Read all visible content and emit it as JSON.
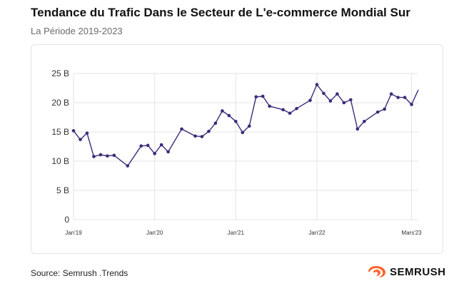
{
  "header": {
    "title": "Tendance du Trafic Dans le Secteur de L'e-commerce Mondial Sur",
    "subtitle": "La Période 2019-2023"
  },
  "footer": {
    "source": "Source: Semrush .Trends",
    "brand": "SEMRUSH"
  },
  "colors": {
    "line": "#3d2a7a",
    "grid": "#e3e3e3",
    "axis_text": "#333333",
    "brand_orange": "#ff642d"
  },
  "icons": {
    "brand_logo": "semrush-flame-icon"
  },
  "chart_data": {
    "type": "line",
    "title": "Tendance du Trafic Dans le Secteur de L'e-commerce Mondial Sur",
    "subtitle": "La Période 2019-2023",
    "xlabel": "",
    "ylabel": "",
    "ylim": [
      0,
      25
    ],
    "y_ticks": [
      0,
      5,
      10,
      15,
      20,
      25
    ],
    "y_tick_labels": [
      "0",
      "5 B",
      "10 B",
      "15 B",
      "20 B",
      "25 B"
    ],
    "x_ticks": [
      {
        "label": "Jan'19",
        "x": 0
      },
      {
        "label": "Jan'20",
        "x": 12
      },
      {
        "label": "Jan'21",
        "x": 24
      },
      {
        "label": "Jan'22",
        "x": 36
      },
      {
        "label": "Mars'23",
        "x": 50
      }
    ],
    "grid": "horizontal",
    "legend": "none",
    "series": [
      {
        "unit": "B",
        "x": [
          0,
          1,
          2,
          3,
          4,
          5,
          6,
          8,
          10,
          11,
          12,
          13,
          14,
          16,
          18,
          19,
          20,
          21,
          22,
          23,
          24,
          25,
          26,
          27,
          28,
          29,
          31,
          32,
          33,
          35,
          36,
          37,
          38,
          39,
          40,
          41,
          42,
          43,
          45,
          46,
          47,
          48,
          49,
          50,
          51
        ],
        "values": [
          15.2,
          13.7,
          14.8,
          10.8,
          11.1,
          10.9,
          11.0,
          9.2,
          12.6,
          12.7,
          11.3,
          12.8,
          11.6,
          15.5,
          14.3,
          14.2,
          15.1,
          16.5,
          18.6,
          17.8,
          16.8,
          14.9,
          16.0,
          21.0,
          21.1,
          19.4,
          18.8,
          18.2,
          19.0,
          20.4,
          23.1,
          21.6,
          20.3,
          21.5,
          20.0,
          20.5,
          15.5,
          16.8,
          18.4,
          18.9,
          21.5,
          20.9,
          20.9,
          19.7,
          22.2
        ]
      }
    ]
  }
}
